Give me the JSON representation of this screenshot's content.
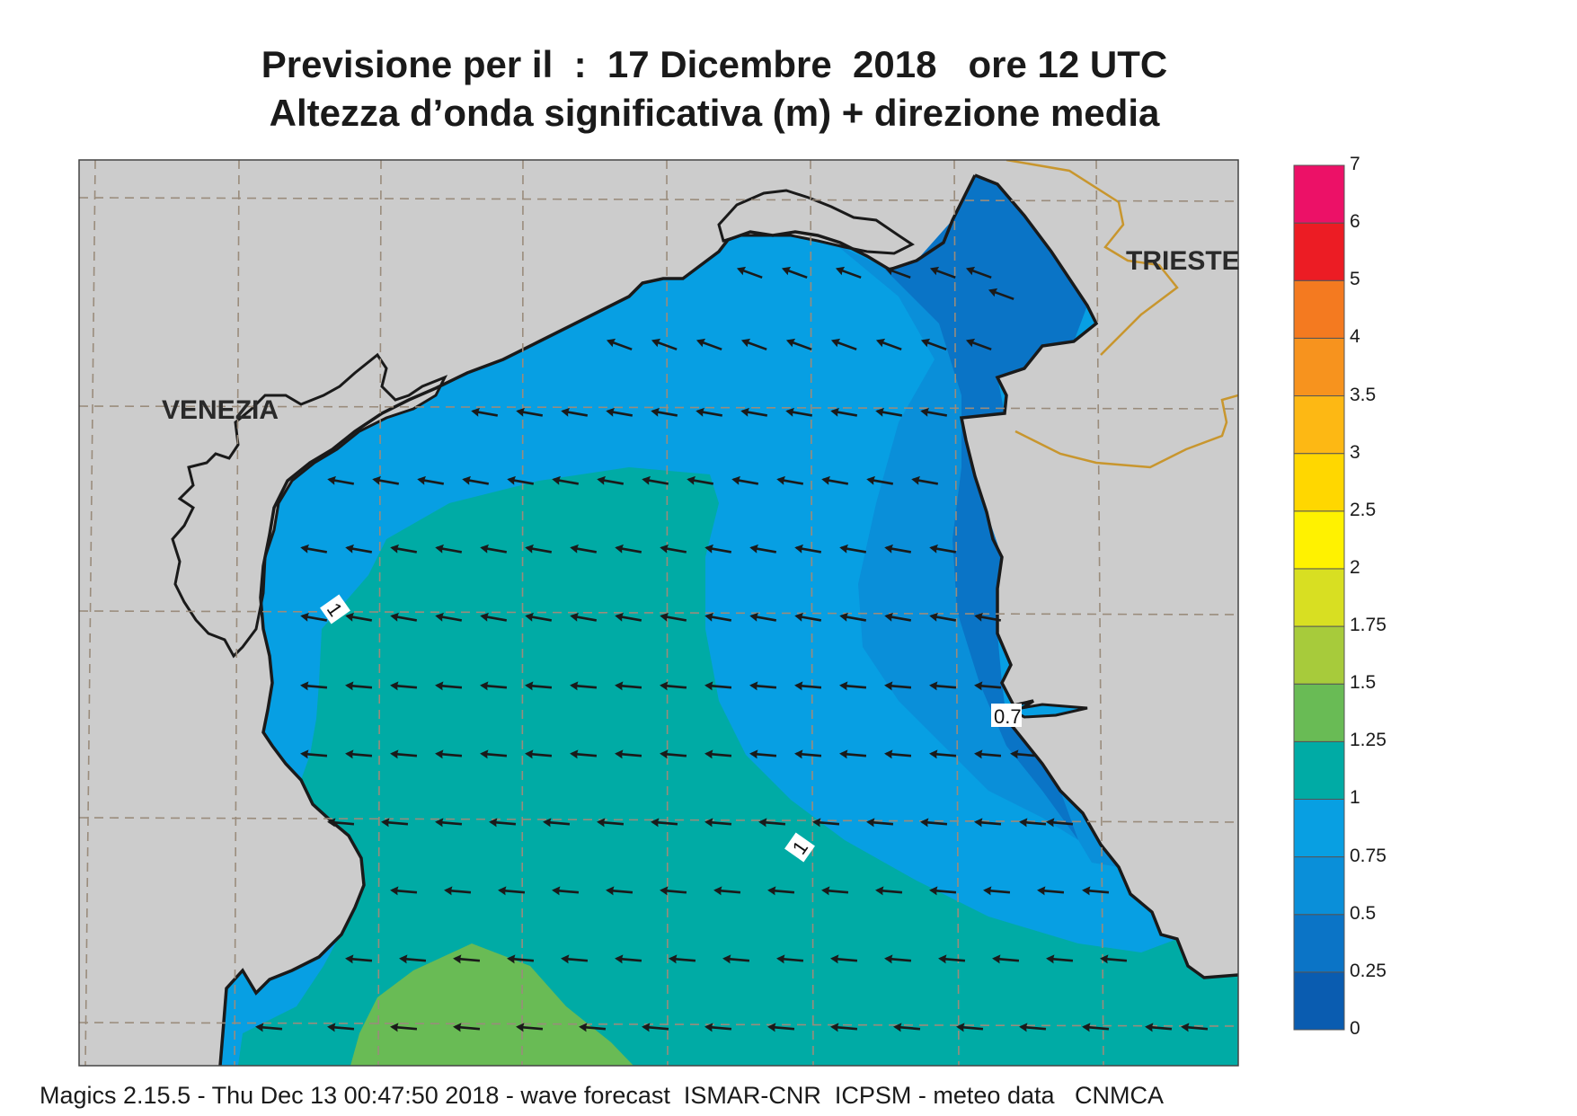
{
  "title": {
    "line1": "Previsione per il  :  17 Dicembre  2018   ore 12 UTC",
    "line2": "Altezza d’onda significativa (m) + direzione media"
  },
  "places": {
    "venezia": "VENEZIA",
    "trieste": "TRIESTE"
  },
  "contour_labels": [
    "1",
    "1",
    "0.7"
  ],
  "footer": "Magics 2.15.5 - Thu Dec 13 00:47:50 2018 - wave forecast  ISMAR-CNR  ICPSM - meteo data   CNMCA",
  "legend": {
    "labels": [
      "7",
      "6",
      "5",
      "4",
      "3.5",
      "3",
      "2.5",
      "2",
      "1.75",
      "1.5",
      "1.25",
      "1",
      "0.75",
      "0.5",
      "0.25",
      "0"
    ],
    "colors": [
      "#0a5cb0",
      "#0b74c6",
      "#0a8fd9",
      "#089fe2",
      "#00aba5",
      "#69bb55",
      "#a7cb3b",
      "#d8df22",
      "#fff200",
      "#ffd700",
      "#fdb814",
      "#f7931e",
      "#f47a20",
      "#ec1c24",
      "#ec1167"
    ]
  },
  "colors": {
    "land": "#cccccc",
    "sea_0_25": "#0a74c6",
    "sea_0_5": "#0a8fd9",
    "sea_0_75": "#079fe3",
    "sea_1_0": "#00aba5",
    "sea_1_25": "#69bb55",
    "coast": "#1a1a1a",
    "border": "#c8962e"
  },
  "icons": {
    "arrow": "wave-direction-arrow-icon"
  }
}
